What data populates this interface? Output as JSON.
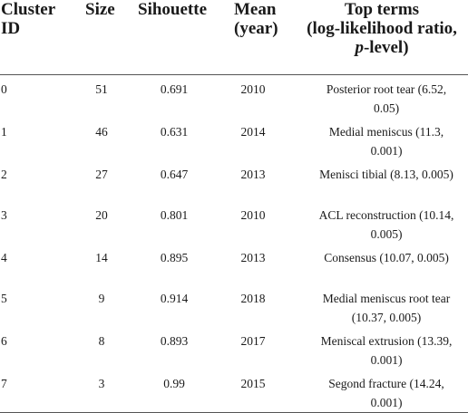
{
  "table": {
    "headers": {
      "cluster_id": [
        "Cluster",
        "ID"
      ],
      "size": "Size",
      "silhouette": "Sihouette",
      "mean_year": [
        "Mean",
        "(year)"
      ],
      "top_terms": {
        "line1": "Top terms",
        "line2": "(log-likelihood ratio,",
        "line3_italic": "p",
        "line3_rest": "-level)"
      }
    },
    "rows": [
      {
        "id": "0",
        "size": "51",
        "silhouette": "0.691",
        "mean": "2010",
        "terms": [
          "Posterior root tear (6.52,",
          "0.05)"
        ]
      },
      {
        "id": "1",
        "size": "46",
        "silhouette": "0.631",
        "mean": "2014",
        "terms": [
          "Medial meniscus (11.3,",
          "0.001)"
        ]
      },
      {
        "id": "2",
        "size": "27",
        "silhouette": "0.647",
        "mean": "2013",
        "terms": [
          "Menisci tibial (8.13, 0.005)",
          ""
        ]
      },
      {
        "id": "3",
        "size": "20",
        "silhouette": "0.801",
        "mean": "2010",
        "terms": [
          "ACL reconstruction (10.14,",
          "0.005)"
        ]
      },
      {
        "id": "4",
        "size": "14",
        "silhouette": "0.895",
        "mean": "2013",
        "terms": [
          "Consensus (10.07, 0.005)",
          ""
        ]
      },
      {
        "id": "5",
        "size": "9",
        "silhouette": "0.914",
        "mean": "2018",
        "terms": [
          "Medial meniscus root tear",
          "(10.37, 0.005)"
        ]
      },
      {
        "id": "6",
        "size": "8",
        "silhouette": "0.893",
        "mean": "2017",
        "terms": [
          "Meniscal extrusion (13.39,",
          "0.001)"
        ]
      },
      {
        "id": "7",
        "size": "3",
        "silhouette": "0.99",
        "mean": "2015",
        "terms": [
          "Segond fracture (14.24,",
          "0.001)"
        ]
      }
    ]
  }
}
